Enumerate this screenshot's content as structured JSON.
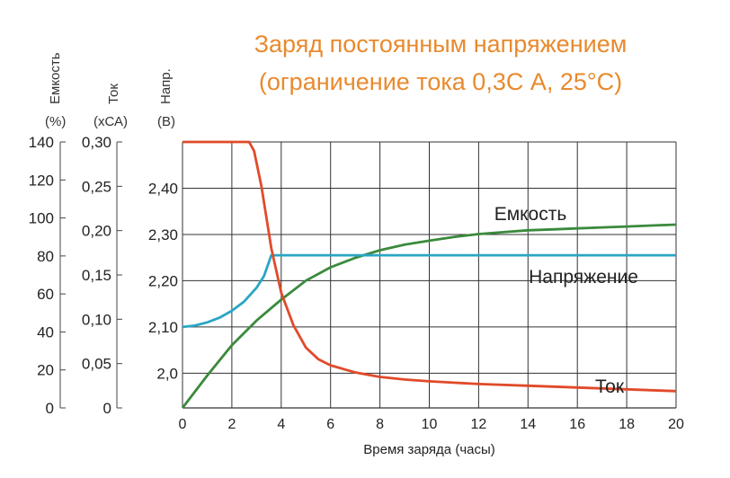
{
  "chart_data": {
    "type": "line",
    "title": "Заряд постоянным напряжением",
    "subtitle": "(ограничение тока 0,3С А, 25°С)",
    "xlabel": "Время заряда (часы)",
    "x_ticks": [
      "0",
      "2",
      "4",
      "6",
      "8",
      "10",
      "12",
      "14",
      "16",
      "18",
      "20"
    ],
    "xlim": [
      0,
      20
    ],
    "grid": true,
    "axes": {
      "capacity": {
        "name": "Емкость",
        "unit": "(%)",
        "ticks": [
          "140",
          "120",
          "100",
          "80",
          "60",
          "40",
          "20",
          "0"
        ],
        "ylim": [
          0,
          140
        ]
      },
      "current": {
        "name": "Ток",
        "unit": "(хСА)",
        "ticks": [
          "0,30",
          "0,25",
          "0,20",
          "0,15",
          "0,10",
          "0,05",
          "0"
        ],
        "ylim": [
          0,
          0.3
        ]
      },
      "voltage": {
        "name": "Напр.",
        "unit": "(В)",
        "ticks": [
          "2,40",
          "2,30",
          "2,20",
          "2,10",
          "2,0"
        ],
        "ylim": [
          1.925,
          2.5
        ]
      }
    },
    "series": [
      {
        "name": "Емкость",
        "axis": "capacity",
        "color": "#3a8a3c",
        "x": [
          0,
          1,
          2,
          3,
          4,
          5,
          6,
          7,
          8,
          9,
          10,
          11,
          12,
          13,
          14,
          15,
          16,
          17,
          18,
          19,
          20
        ],
        "y": [
          0,
          17,
          33,
          46,
          57,
          67,
          74,
          79,
          83,
          86,
          88,
          90,
          91.5,
          92.5,
          93.5,
          94,
          94.5,
          95,
          95.5,
          96,
          96.5
        ]
      },
      {
        "name": "Напряжение",
        "axis": "voltage",
        "color": "#2aa6c4",
        "x": [
          0,
          0.5,
          1,
          1.5,
          2,
          2.5,
          3,
          3.3,
          3.6,
          4,
          6,
          8,
          10,
          12,
          14,
          16,
          18,
          20
        ],
        "y": [
          2.1,
          2.103,
          2.11,
          2.12,
          2.135,
          2.155,
          2.185,
          2.21,
          2.255,
          2.255,
          2.255,
          2.255,
          2.255,
          2.255,
          2.255,
          2.255,
          2.255,
          2.255
        ]
      },
      {
        "name": "Ток",
        "axis": "current",
        "color": "#e04a2a",
        "x": [
          0,
          1,
          2,
          2.7,
          2.9,
          3.2,
          3.6,
          4,
          4.5,
          5,
          5.5,
          6,
          7,
          8,
          9,
          10,
          12,
          14,
          16,
          18,
          20
        ],
        "y": [
          0.3,
          0.3,
          0.3,
          0.3,
          0.29,
          0.25,
          0.18,
          0.13,
          0.093,
          0.068,
          0.055,
          0.048,
          0.04,
          0.035,
          0.032,
          0.03,
          0.027,
          0.025,
          0.023,
          0.021,
          0.019
        ]
      }
    ],
    "annotations": [
      "Емкость",
      "Напряжение",
      "Ток"
    ]
  }
}
